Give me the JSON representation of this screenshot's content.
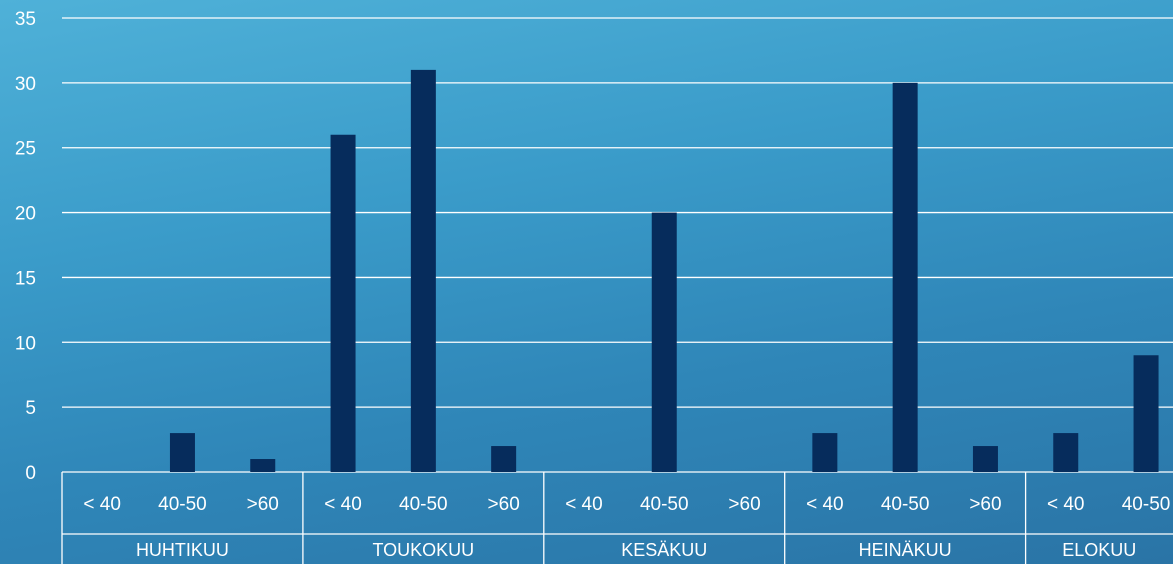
{
  "chart_data": {
    "type": "bar",
    "title": "",
    "xlabel": "",
    "ylabel": "",
    "ylim": [
      0,
      35
    ],
    "yticks": [
      0,
      5,
      10,
      15,
      20,
      25,
      30,
      35
    ],
    "grid": true,
    "legend": "none",
    "groups": [
      {
        "label": "HUHTIKUU",
        "categories": [
          "< 40",
          "40-50",
          ">60"
        ],
        "values": [
          0,
          3,
          1
        ]
      },
      {
        "label": "TOUKOKUU",
        "categories": [
          "< 40",
          "40-50",
          ">60"
        ],
        "values": [
          26,
          31,
          2
        ]
      },
      {
        "label": "KESÄKUU",
        "categories": [
          "< 40",
          "40-50",
          ">60"
        ],
        "values": [
          0,
          20,
          0
        ]
      },
      {
        "label": "HEINÄKUU",
        "categories": [
          "< 40",
          "40-50",
          ">60"
        ],
        "values": [
          3,
          30,
          2
        ]
      },
      {
        "label": "ELOKUU",
        "categories": [
          "< 40",
          "40-50"
        ],
        "values": [
          3,
          9
        ]
      }
    ]
  },
  "colors": {
    "bar": "#062c5c",
    "gridline": "#ffffff",
    "text": "#ffffff"
  }
}
